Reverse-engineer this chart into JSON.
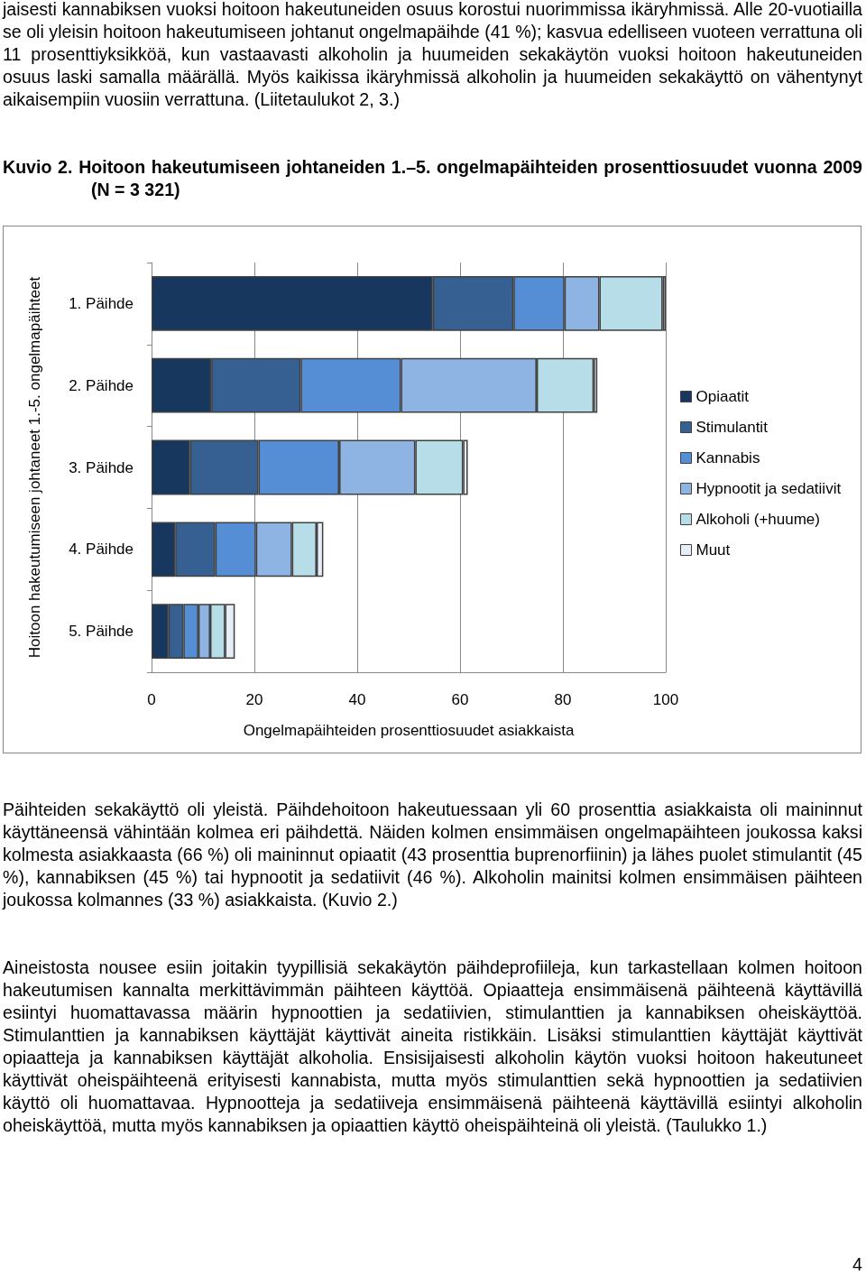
{
  "chart_data": {
    "type": "bar",
    "orientation": "horizontal",
    "stacked": true,
    "title": "Kuvio 2. Hoitoon hakeutumiseen johtaneiden 1.–5. ongelmapäihteiden prosenttiosuudet vuonna 2009 (N = 3 321)",
    "categories": [
      "1. Päihde",
      "2. Päihde",
      "3. Päihde",
      "4. Päihde",
      "5. Päihde"
    ],
    "series": [
      {
        "name": "Opiaatit",
        "color": "#17375e",
        "values": [
          54.7,
          11.6,
          7.5,
          4.6,
          3.3
        ]
      },
      {
        "name": "Stimulantit",
        "color": "#376092",
        "values": [
          15.7,
          17.4,
          13.3,
          7.8,
          2.9
        ]
      },
      {
        "name": "Kannabis",
        "color": "#558ed5",
        "values": [
          9.9,
          19.5,
          15.7,
          7.9,
          2.9
        ]
      },
      {
        "name": "Hypnootit ja sedatiivit",
        "color": "#8eb4e3",
        "values": [
          6.8,
          26.4,
          14.8,
          7.0,
          2.3
        ]
      },
      {
        "name": "Alkoholi (+huume)",
        "color": "#b7dde8",
        "values": [
          12.3,
          11.1,
          9.3,
          4.8,
          2.9
        ]
      },
      {
        "name": "Muut",
        "color": "#e6eef8",
        "values": [
          0.6,
          0.7,
          0.9,
          1.3,
          1.9
        ]
      }
    ],
    "xlim": [
      0,
      100
    ],
    "xticks": [
      0,
      20,
      40,
      60,
      80,
      100
    ],
    "xlabel": "Ongelmapäihteiden prosenttiosuudet asiakkaista",
    "ylabel": "Hoitoon hakeutumiseen johtaneet 1.-5. ongelmapäihteet",
    "grid": "x",
    "legend": "right",
    "annotations": [
      "jaisesti kannabiksen vuoksi hoitoon hakeutuneiden osuus korostui nuorimmissa ikäryhmissä. Alle 20-vuotiailla se oli yleisin hoitoon hakeutumiseen johtanut ongelmapäihde (41 %); kasvua edelliseen vuoteen verrattuna oli 11 prosenttiyksikköä, kun vastaavasti alkoholin ja huumeiden sekakäytön vuoksi hoitoon hakeutuneiden osuus laski samalla määrällä. Myös kaikissa ikäryhmissä alkoholin ja huumeiden sekakäyttö on vähentynyt aikaisempiin vuosiin verrattuna. (Liitetaulukot 2, 3.)",
      "Päihteiden sekakäyttö oli yleistä. Päihdehoitoon hakeutuessaan yli 60 prosenttia asiakkaista oli maininnut käyttäneensä vähintään kolmea eri päihdettä. Näiden kolmen ensimmäisen ongelmapäihteen joukossa kaksi kolmesta asiakkaasta (66 %) oli maininnut opiaatit (43 prosenttia buprenorfiinin) ja lähes puolet stimulantit (45 %), kannabiksen (45 %) tai hypnootit ja sedatiivit (46 %). Alkoholin mainitsi kolmen ensimmäisen päihteen joukossa kolmannes (33 %) asiakkaista. (Kuvio 2.)",
      "Aineistosta nousee esiin joitakin tyypillisiä sekakäytön päihdeprofiileja, kun tarkastellaan kolmen hoitoon hakeutumisen kannalta merkittävimmän päihteen käyttöä. Opiaatteja ensimmäisenä päihteenä käyttävillä esiintyi huomattavassa määrin hypnoottien ja sedatiivien, stimulanttien ja kannabiksen oheiskäyttöä. Stimulanttien ja kannabiksen käyttäjät käyttivät aineita ristikkäin. Lisäksi stimulanttien käyttäjät käyttivät opiaatteja ja kannabiksen käyttäjät alkoholia. Ensisijaisesti alkoholin käytön vuoksi hoitoon hakeutuneet käyttivät oheispäihteenä erityisesti kannabista, mutta myös stimulanttien sekä hypnoottien ja sedatiivien käyttö oli huomattavaa. Hypnootteja ja sedatiiveja ensimmäisenä päihteenä käyttävillä esiintyi alkoholin oheiskäyttöä, mutta myös kannabiksen ja opiaattien käyttö oheispäihteinä oli yleistä. (Taulukko 1.)",
      "4"
    ]
  }
}
